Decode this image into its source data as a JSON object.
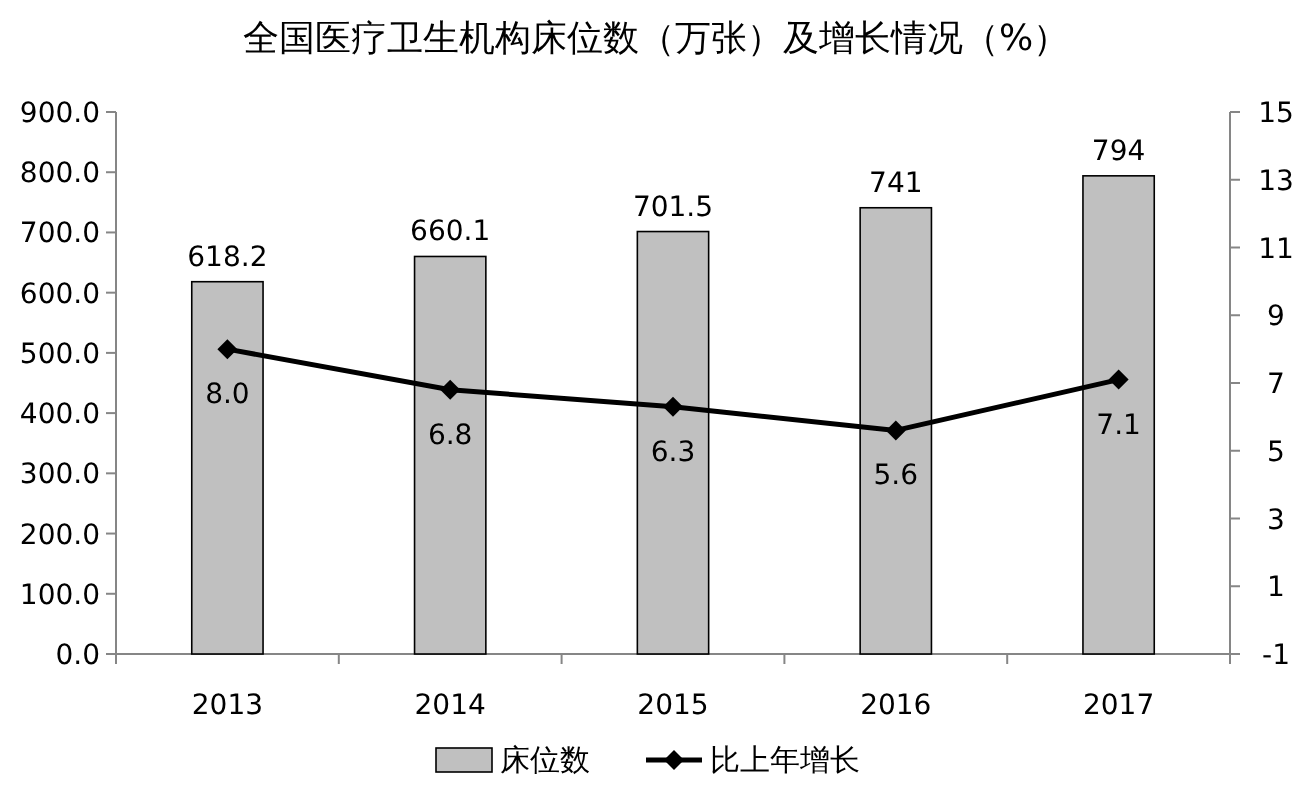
{
  "chart_data": {
    "type": "bar",
    "title": "全国医疗卫生机构床位数（万张）及增长情况（%）",
    "categories": [
      "2013",
      "2014",
      "2015",
      "2016",
      "2017"
    ],
    "series": [
      {
        "name": "床位数",
        "color": "#c0c0c0",
        "values": [
          618.2,
          660.1,
          701.5,
          741,
          794
        ],
        "value_labels": [
          "618.2",
          "660.1",
          "701.5",
          "741",
          "794"
        ]
      },
      {
        "name": "比上年增长",
        "type": "line",
        "axis": "y2",
        "color": "#000000",
        "marker": "diamond",
        "values": [
          8.0,
          6.8,
          6.3,
          5.6,
          7.1
        ],
        "value_labels": [
          "8.0",
          "6.8",
          "6.3",
          "5.6",
          "7.1"
        ]
      }
    ],
    "ylim": [
      0,
      900
    ],
    "yticks": [
      {
        "value": 0,
        "label": "0.0"
      },
      {
        "value": 100,
        "label": "100.0"
      },
      {
        "value": 200,
        "label": "200.0"
      },
      {
        "value": 300,
        "label": "300.0"
      },
      {
        "value": 400,
        "label": "400.0"
      },
      {
        "value": 500,
        "label": "500.0"
      },
      {
        "value": 600,
        "label": "600.0"
      },
      {
        "value": 700,
        "label": "700.0"
      },
      {
        "value": 800,
        "label": "800.0"
      },
      {
        "value": 900,
        "label": "900.0"
      }
    ],
    "y2lim": [
      -1,
      15
    ],
    "y2ticks": [
      -1,
      1,
      3,
      5,
      7,
      9,
      11,
      13,
      15
    ],
    "legend": "bottom"
  }
}
